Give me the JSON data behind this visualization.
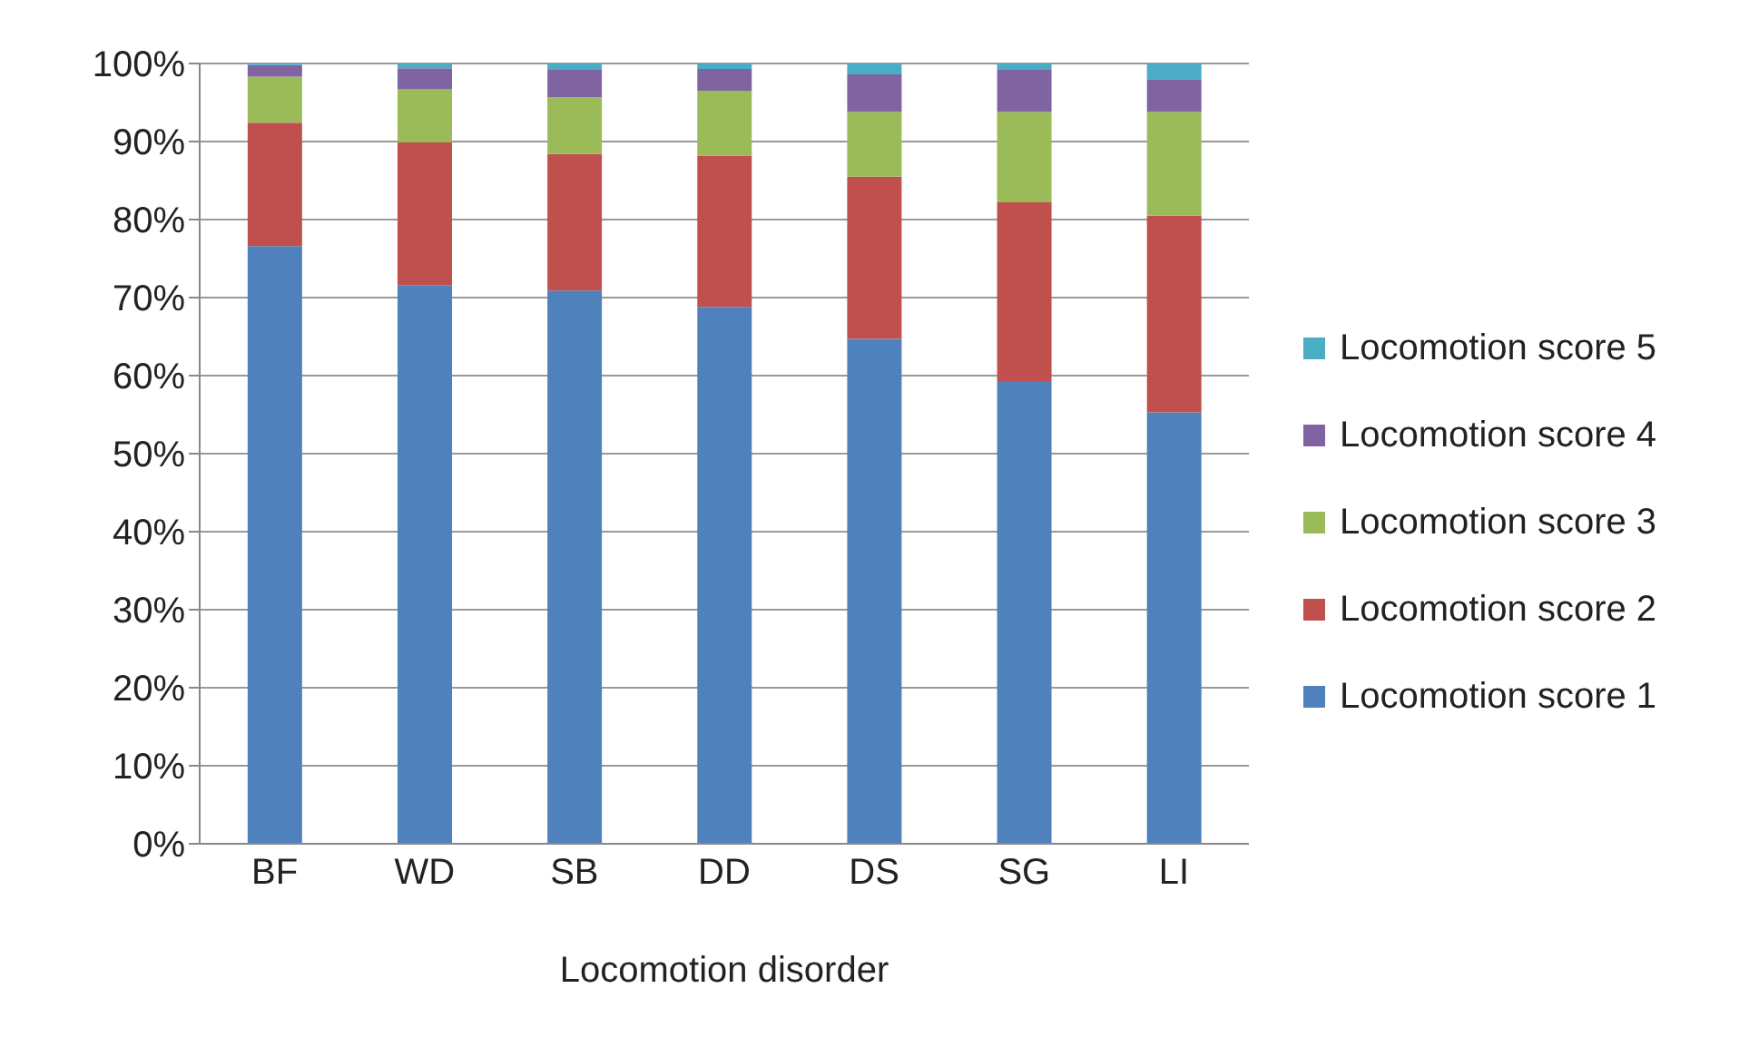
{
  "chart_data": {
    "type": "bar",
    "stacked": true,
    "xlabel": "Locomotion disorder",
    "categories": [
      "BF",
      "WD",
      "SB",
      "DD",
      "DS",
      "SG",
      "LI"
    ],
    "series": [
      {
        "name": "Locomotion score 1",
        "color": "#4f81bd",
        "values": [
          76.6,
          71.6,
          70.9,
          68.8,
          64.7,
          59.3,
          55.3
        ]
      },
      {
        "name": "Locomotion score 2",
        "color": "#c0504d",
        "values": [
          15.8,
          18.3,
          17.5,
          19.4,
          20.8,
          22.9,
          25.2
        ]
      },
      {
        "name": "Locomotion score 3",
        "color": "#9bbb59",
        "values": [
          5.9,
          6.8,
          7.3,
          8.3,
          8.3,
          11.6,
          13.3
        ]
      },
      {
        "name": "Locomotion score 4",
        "color": "#8064a2",
        "values": [
          1.5,
          2.7,
          3.5,
          2.8,
          4.8,
          5.4,
          4.2
        ]
      },
      {
        "name": "Locomotion score 5",
        "color": "#4bacc6",
        "values": [
          0.2,
          0.6,
          0.8,
          0.7,
          1.4,
          0.8,
          2.0
        ]
      }
    ],
    "ylim": [
      0,
      100
    ],
    "yticks": [
      {
        "value": 0,
        "label": "0%"
      },
      {
        "value": 10,
        "label": "10%"
      },
      {
        "value": 20,
        "label": "20%"
      },
      {
        "value": 30,
        "label": "30%"
      },
      {
        "value": 40,
        "label": "40%"
      },
      {
        "value": 50,
        "label": "50%"
      },
      {
        "value": 60,
        "label": "60%"
      },
      {
        "value": 70,
        "label": "70%"
      },
      {
        "value": 80,
        "label": "80%"
      },
      {
        "value": 90,
        "label": "90%"
      },
      {
        "value": 100,
        "label": "100%"
      }
    ],
    "grid": "y",
    "legend": "right"
  }
}
